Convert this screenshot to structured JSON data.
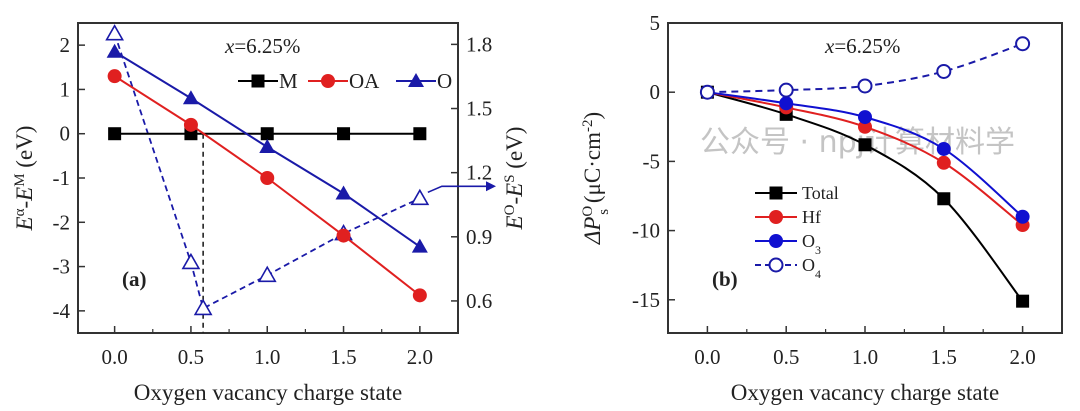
{
  "chart_data": [
    {
      "type": "line",
      "panel_label": "(a)",
      "annotation": {
        "var": "x",
        "text": "=6.25%"
      },
      "xlabel": "Oxygen vacancy charge state",
      "ylabel": {
        "main": "E",
        "sup1": "α",
        "mid": "-E",
        "sup2": "M",
        "unit": " (eV)"
      },
      "y2label": {
        "main": "E",
        "sup1": "O",
        "mid": "-E",
        "sup2": "S",
        "unit": " (eV)"
      },
      "x": [
        0.0,
        0.5,
        1.0,
        1.5,
        2.0
      ],
      "xticks": [
        "0.0",
        "0.5",
        "1.0",
        "1.5",
        "2.0"
      ],
      "xlim": [
        -0.24,
        2.25
      ],
      "yticks": [
        "2",
        "1",
        "0",
        "-1",
        "-2",
        "-3",
        "-4"
      ],
      "ylim": [
        -4.5,
        2.5
      ],
      "y2ticks": [
        "1.8",
        "1.5",
        "1.2",
        "0.9",
        "0.6"
      ],
      "y2lim": [
        0.45,
        1.9
      ],
      "legend_placement": "top-right",
      "series": [
        {
          "name": "M",
          "values": [
            0,
            0,
            0,
            0,
            0
          ],
          "color": "#000000",
          "marker": "square"
        },
        {
          "name": "OA",
          "values": [
            1.3,
            0.2,
            -1.0,
            -2.3,
            -3.65
          ],
          "color": "#e02020",
          "marker": "circle"
        },
        {
          "name": "O",
          "values": [
            1.85,
            0.8,
            -0.3,
            -1.35,
            -2.55
          ],
          "color": "#1a1aa8",
          "marker": "triangle"
        }
      ],
      "right_axis_series": {
        "name": "EO-ES",
        "axis": "right",
        "x": [
          0.0,
          0.5,
          0.58,
          1.0,
          1.5,
          2.0
        ],
        "values": [
          1.85,
          0.78,
          0.565,
          0.72,
          0.915,
          1.08
        ],
        "color": "#1a1aa8",
        "marker": "open-triangle",
        "style": "dashed"
      },
      "crossover_x": 0.58
    },
    {
      "type": "line",
      "panel_label": "(b)",
      "annotation": {
        "var": "x",
        "text": "=6.25%"
      },
      "xlabel": "Oxygen vacancy charge state",
      "ylabel": {
        "main": "ΔP",
        "sup1": "O",
        "sub1": "s",
        "unit": " (μC·cm",
        "sup2": "-2",
        "close": ")"
      },
      "x": [
        0.0,
        0.5,
        1.0,
        1.5,
        2.0
      ],
      "xticks": [
        "0.0",
        "0.5",
        "1.0",
        "1.5",
        "2.0"
      ],
      "xlim": [
        -0.25,
        2.25
      ],
      "yticks": [
        "5",
        "0",
        "-5",
        "-10",
        "-15"
      ],
      "ylim": [
        -17.4,
        5
      ],
      "legend_placement": "lower-left",
      "series": [
        {
          "name": "Total",
          "sub": "",
          "values": [
            0,
            -1.6,
            -3.8,
            -7.7,
            -15.1
          ],
          "color": "#000000",
          "marker": "square",
          "style": "solid"
        },
        {
          "name": "Hf",
          "sub": "",
          "values": [
            0,
            -1.1,
            -2.5,
            -5.1,
            -9.6
          ],
          "color": "#e02020",
          "marker": "circle",
          "style": "solid"
        },
        {
          "name": "O",
          "sub": "3",
          "values": [
            0,
            -0.8,
            -1.8,
            -4.1,
            -9.0
          ],
          "color": "#1010d0",
          "marker": "circle",
          "style": "solid"
        },
        {
          "name": "O",
          "sub": "4",
          "values": [
            0,
            0.15,
            0.45,
            1.5,
            3.5
          ],
          "color": "#1a1aa8",
          "marker": "open-circle",
          "style": "dashed"
        }
      ]
    }
  ],
  "watermark": "公众号 · npj计算材料学"
}
